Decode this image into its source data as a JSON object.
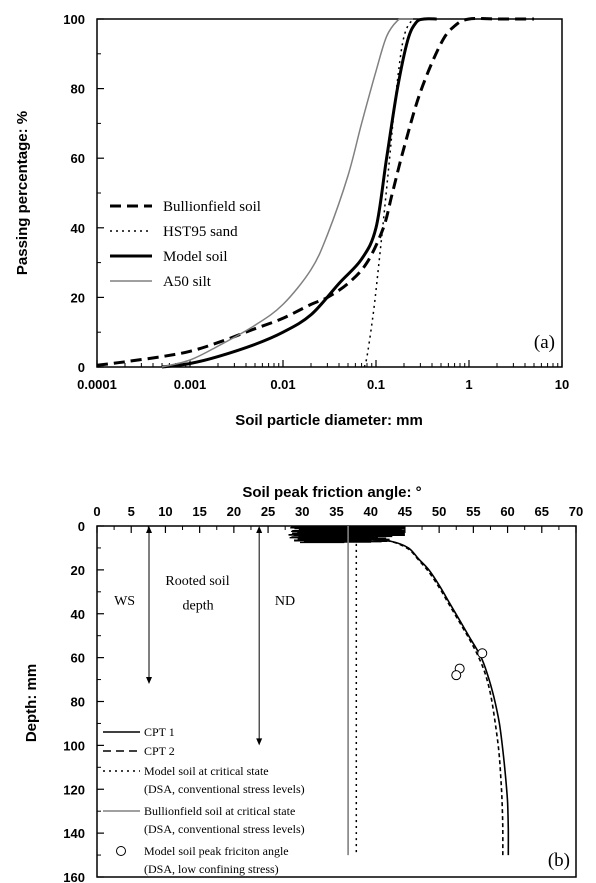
{
  "chart_data": [
    {
      "type": "line",
      "panel_label": "(a)",
      "xlabel": "Soil particle diameter: mm",
      "ylabel": "Passing percentage: %",
      "xscale": "log",
      "xlim": [
        0.0001,
        10
      ],
      "ylim": [
        0,
        100
      ],
      "xtick_labels": [
        "0.0001",
        "0.001",
        "0.01",
        "0.1",
        "1",
        "10"
      ],
      "ytick_labels": [
        "0",
        "20",
        "40",
        "60",
        "80",
        "100"
      ],
      "legend_position": "center-left",
      "series": [
        {
          "name": "Bullionfield soil",
          "style": "dash",
          "color": "#000000",
          "x": [
            0.0001,
            0.0002,
            0.0005,
            0.001,
            0.002,
            0.005,
            0.01,
            0.02,
            0.03,
            0.05,
            0.08,
            0.12,
            0.15,
            0.2,
            0.3,
            0.5,
            0.7,
            1.0,
            2.0,
            5.0
          ],
          "y": [
            0.5,
            1.5,
            3,
            4.5,
            7,
            11,
            14,
            18,
            20,
            24,
            30,
            40,
            50,
            63,
            79,
            93,
            98,
            100,
            100,
            100
          ]
        },
        {
          "name": "HST95 sand",
          "style": "dot",
          "color": "#000000",
          "x": [
            0.075,
            0.08,
            0.09,
            0.1,
            0.12,
            0.14,
            0.16,
            0.19,
            0.22,
            0.26
          ],
          "y": [
            0,
            3,
            12,
            22,
            42,
            60,
            76,
            92,
            98,
            100
          ]
        },
        {
          "name": "Model soil",
          "style": "solid-thick",
          "color": "#000000",
          "x": [
            0.0005,
            0.001,
            0.002,
            0.005,
            0.01,
            0.02,
            0.04,
            0.07,
            0.1,
            0.13,
            0.17,
            0.22,
            0.27,
            0.33,
            0.45
          ],
          "y": [
            0,
            1,
            3,
            6.5,
            10,
            15,
            24,
            31,
            40,
            60,
            80,
            94,
            99,
            100,
            100
          ]
        },
        {
          "name": "A50 silt",
          "style": "solid-thin",
          "color": "#808080",
          "x": [
            0.0005,
            0.001,
            0.002,
            0.005,
            0.01,
            0.02,
            0.03,
            0.05,
            0.07,
            0.1,
            0.13,
            0.17,
            0.2,
            0.25
          ],
          "y": [
            0,
            2,
            6,
            12,
            18,
            28,
            38,
            55,
            70,
            85,
            95,
            99.5,
            100,
            100
          ]
        }
      ]
    },
    {
      "type": "line",
      "panel_label": "(b)",
      "title": "Soil peak friction angle: °",
      "ylabel": "Depth: mm",
      "xlim": [
        0,
        70
      ],
      "ylim": [
        160,
        0
      ],
      "x_axis_position": "top",
      "xtick_labels": [
        "0",
        "5",
        "10",
        "15",
        "20",
        "25",
        "30",
        "35",
        "40",
        "45",
        "50",
        "55",
        "60",
        "65",
        "70"
      ],
      "ytick_labels": [
        "0",
        "20",
        "40",
        "60",
        "80",
        "100",
        "120",
        "140",
        "160"
      ],
      "annotations": [
        {
          "text": "WS",
          "x": 2.5,
          "y": 36
        },
        {
          "text": "Rooted soil",
          "x": 10,
          "y": 27
        },
        {
          "text": "depth",
          "x": 12.5,
          "y": 38
        },
        {
          "text": "ND",
          "x": 26,
          "y": 36
        }
      ],
      "arrows": [
        {
          "x": 7.6,
          "y_from": 0,
          "y_to": 72
        },
        {
          "x": 23.7,
          "y_from": 0,
          "y_to": 100
        }
      ],
      "series": [
        {
          "name": "CPT 1",
          "style": "solid",
          "color": "#000000",
          "x": [
            28,
            32,
            36,
            40,
            43,
            45.5,
            47,
            48.5,
            50,
            51.5,
            53,
            54.5,
            56,
            57,
            58,
            58.8,
            59.3,
            59.7,
            60,
            60.1,
            60.1
          ],
          "y": [
            4,
            4,
            5,
            6,
            7,
            10,
            15,
            20,
            27,
            35,
            43,
            51,
            59,
            67,
            78,
            90,
            102,
            114,
            126,
            138,
            150
          ]
        },
        {
          "name": "CPT 2",
          "style": "dash",
          "color": "#000000",
          "x": [
            28,
            32,
            36,
            40,
            43,
            45.5,
            47,
            48.5,
            50,
            51.5,
            53,
            54.5,
            55.8,
            56.8,
            57.6,
            58.2,
            58.7,
            59,
            59.2,
            59.3,
            59.3
          ],
          "y": [
            4,
            4,
            5,
            6,
            7,
            10.5,
            15.5,
            21,
            28,
            36,
            44,
            52,
            60,
            68,
            78,
            90,
            102,
            114,
            126,
            138,
            150
          ]
        },
        {
          "name": "Model soil at critical state",
          "name_line2": "(DSA, conventional stress levels)",
          "style": "dot",
          "color": "#000000",
          "x": [
            37.9,
            37.9
          ],
          "y": [
            0,
            150
          ]
        },
        {
          "name": "Bullionfield soil at critical state",
          "name_line2": "(DSA, conventional stress levels)",
          "style": "solid",
          "color": "#808080",
          "x": [
            36.7,
            36.7
          ],
          "y": [
            0,
            150
          ]
        },
        {
          "name": "Model soil peak friciton angle",
          "name_line2": "(DSA, low confining stress)",
          "style": "marker-open-circle",
          "color": "#000000",
          "x": [
            56.3,
            53.0,
            52.5
          ],
          "y": [
            58,
            65,
            68
          ]
        }
      ]
    }
  ]
}
